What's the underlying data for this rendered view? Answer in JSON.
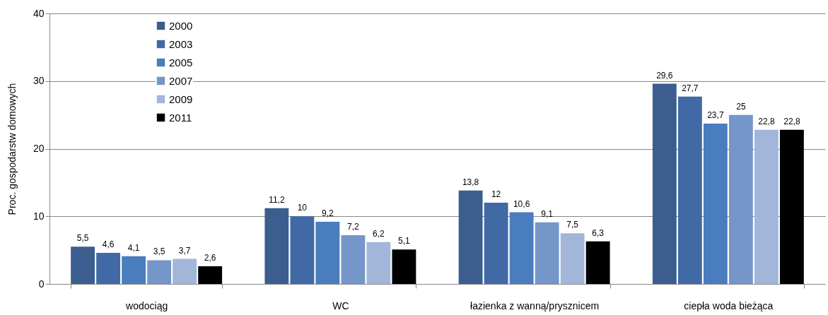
{
  "chart_data": {
    "type": "bar",
    "ylabel": "Proc. gospodarstw domowych",
    "categories": [
      "wodociąg",
      "WC",
      "łazienka z wanną/prysznicem",
      "ciepła woda bieżąca"
    ],
    "series": [
      {
        "name": "2000",
        "color": "#3b5e8f",
        "values": [
          5.5,
          11.2,
          13.8,
          29.6
        ],
        "value_labels": [
          "5,5",
          "11,2",
          "13,8",
          "29,6"
        ]
      },
      {
        "name": "2003",
        "color": "#4169a6",
        "values": [
          4.6,
          10,
          12,
          27.7
        ],
        "value_labels": [
          "4,6",
          "10",
          "12",
          "27,7"
        ]
      },
      {
        "name": "2005",
        "color": "#4a7dbd",
        "values": [
          4.1,
          9.2,
          10.6,
          23.7
        ],
        "value_labels": [
          "4,1",
          "9,2",
          "10,6",
          "23,7"
        ]
      },
      {
        "name": "2007",
        "color": "#7596c8",
        "values": [
          3.5,
          7.2,
          9.1,
          25
        ],
        "value_labels": [
          "3,5",
          "7,2",
          "9,1",
          "25"
        ]
      },
      {
        "name": "2009",
        "color": "#a2b6da",
        "values": [
          3.7,
          6.2,
          7.5,
          22.8
        ],
        "value_labels": [
          "3,7",
          "6,2",
          "7,5",
          "22,8"
        ]
      },
      {
        "name": "2011",
        "color": "#000000",
        "values": [
          2.6,
          5.1,
          6.3,
          22.8
        ],
        "value_labels": [
          "2,6",
          "5,1",
          "6,3",
          "22,8"
        ]
      }
    ],
    "ylim": [
      0,
      40
    ],
    "yticks": [
      0,
      10,
      20,
      30,
      40
    ],
    "grid": "y",
    "legend": "top left"
  }
}
